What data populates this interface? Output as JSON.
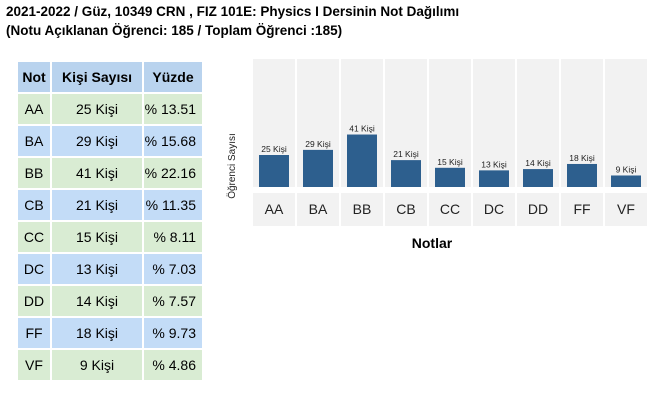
{
  "title": {
    "line1": "2021-2022 / Güz, 10349 CRN , FIZ 101E: Physics I Dersinin Not Dağılımı",
    "line2": "(Notu Açıklanan Öğrenci: 185 / Toplam Öğrenci :185)"
  },
  "table": {
    "headers": [
      "Not",
      "Kişi Sayısı",
      "Yüzde"
    ],
    "rows": [
      {
        "grade": "AA",
        "count": "25 Kişi",
        "percent": "% 13.51"
      },
      {
        "grade": "BA",
        "count": "29 Kişi",
        "percent": "% 15.68"
      },
      {
        "grade": "BB",
        "count": "41 Kişi",
        "percent": "% 22.16"
      },
      {
        "grade": "CB",
        "count": "21 Kişi",
        "percent": "% 11.35"
      },
      {
        "grade": "CC",
        "count": "15 Kişi",
        "percent": "% 8.11"
      },
      {
        "grade": "DC",
        "count": "13 Kişi",
        "percent": "% 7.03"
      },
      {
        "grade": "DD",
        "count": "14 Kişi",
        "percent": "% 7.57"
      },
      {
        "grade": "FF",
        "count": "18 Kişi",
        "percent": "% 9.73"
      },
      {
        "grade": "VF",
        "count": "9 Kişi",
        "percent": "% 4.86"
      }
    ]
  },
  "chart_data": {
    "type": "bar",
    "categories": [
      "AA",
      "BA",
      "BB",
      "CB",
      "CC",
      "DC",
      "DD",
      "FF",
      "VF"
    ],
    "values": [
      25,
      29,
      41,
      21,
      15,
      13,
      14,
      18,
      9
    ],
    "data_labels": [
      "25 Kişi",
      "29 Kişi",
      "41 Kişi",
      "21 Kişi",
      "15 Kişi",
      "13 Kişi",
      "14 Kişi",
      "18 Kişi",
      "9 Kişi"
    ],
    "title": "",
    "xlabel": "Notlar",
    "ylabel": "Öğrenci Sayısı",
    "ylim": [
      0,
      100
    ],
    "grid": false,
    "bar_color": "#2d5f8e",
    "cell_color": "#f2f2f2"
  }
}
